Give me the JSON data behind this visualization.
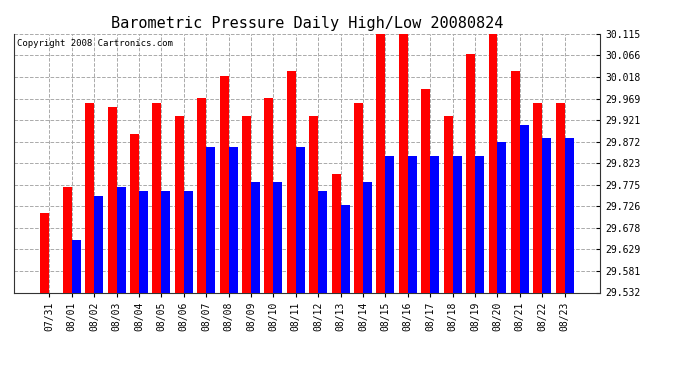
{
  "title": "Barometric Pressure Daily High/Low 20080824",
  "copyright": "Copyright 2008 Cartronics.com",
  "categories": [
    "07/31",
    "08/01",
    "08/02",
    "08/03",
    "08/04",
    "08/05",
    "08/06",
    "08/07",
    "08/08",
    "08/09",
    "08/10",
    "08/11",
    "08/12",
    "08/13",
    "08/14",
    "08/15",
    "08/16",
    "08/17",
    "08/18",
    "08/19",
    "08/20",
    "08/21",
    "08/22",
    "08/23"
  ],
  "highs": [
    29.71,
    29.77,
    29.96,
    29.95,
    29.89,
    29.96,
    29.93,
    29.97,
    30.02,
    29.93,
    29.97,
    30.03,
    29.93,
    29.8,
    29.96,
    30.13,
    30.13,
    29.99,
    29.93,
    30.07,
    30.13,
    30.03,
    29.96,
    29.96
  ],
  "lows": [
    29.532,
    29.65,
    29.75,
    29.77,
    29.76,
    29.76,
    29.76,
    29.86,
    29.86,
    29.78,
    29.78,
    29.86,
    29.76,
    29.73,
    29.78,
    29.84,
    29.84,
    29.84,
    29.84,
    29.84,
    29.87,
    29.91,
    29.88,
    29.88
  ],
  "ymin": 29.532,
  "ymax": 30.115,
  "yticks": [
    30.115,
    30.066,
    30.018,
    29.969,
    29.921,
    29.872,
    29.823,
    29.775,
    29.726,
    29.678,
    29.629,
    29.581,
    29.532
  ],
  "bar_color_high": "#ff0000",
  "bar_color_low": "#0000ff",
  "bg_color": "#ffffff",
  "grid_color": "#aaaaaa",
  "title_fontsize": 11,
  "tick_fontsize": 7,
  "copyright_fontsize": 6.5
}
